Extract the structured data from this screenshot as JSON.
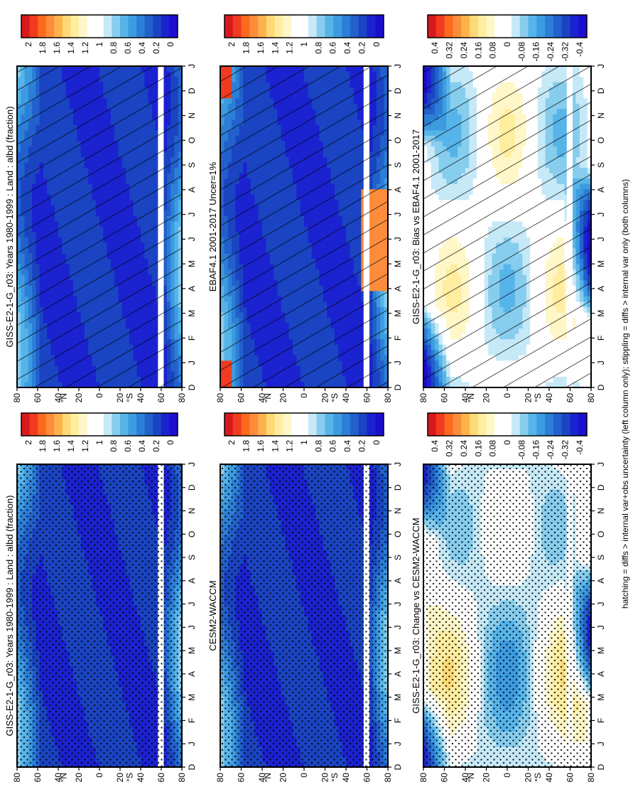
{
  "footnote": "hatching = diffs > internal var+obs uncertainty (left column only); stippling = diffs > internal var only (both columns)",
  "axes": {
    "months": [
      "D",
      "J",
      "F",
      "M",
      "A",
      "M",
      "J",
      "J",
      "A",
      "S",
      "O",
      "N",
      "D",
      "J"
    ],
    "lat_ticks": [
      "80",
      "60",
      "40",
      "20",
      "0",
      "20",
      "40",
      "60",
      "80"
    ],
    "lat_hemisphere_labels": [
      "°N",
      "°S"
    ]
  },
  "colorbars": {
    "absolute": {
      "tick_labels": [
        "2",
        "1.8",
        "1.6",
        "1.4",
        "1.2",
        "1",
        "0.8",
        "0.6",
        "0.4",
        "0.2",
        "0"
      ],
      "colors": [
        "#d7191c",
        "#f03b20",
        "#fd6a1e",
        "#fd8d3c",
        "#feb24c",
        "#fed976",
        "#ffeda0",
        "#fff7c8",
        "#ffffff",
        "#ffffff",
        "#c6e9f7",
        "#87cdee",
        "#56b4e9",
        "#3d9be0",
        "#2c7fd6",
        "#2261cc",
        "#1a44c2",
        "#1b22cf",
        "#1c0ecf"
      ]
    },
    "difference": {
      "tick_labels": [
        "0.4",
        "0.32",
        "0.24",
        "0.16",
        "0.08",
        "0",
        "-0.08",
        "-0.16",
        "-0.24",
        "-0.32",
        "-0.4"
      ],
      "colors": [
        "#d7191c",
        "#f03b20",
        "#fd6a1e",
        "#fd8d3c",
        "#feb24c",
        "#fed976",
        "#ffeda0",
        "#fff7c8",
        "#ffffff",
        "#ffffff",
        "#c6e9f7",
        "#87cdee",
        "#56b4e9",
        "#3d9be0",
        "#2c7fd6",
        "#2261cc",
        "#1a44c2",
        "#1b22cf",
        "#1c0ecf"
      ]
    }
  },
  "chart_data": [
    {
      "type": "heatmap",
      "title": "GISS-E2-1-G_r03: Years 1980-1999 : Land : albd (fraction)",
      "overlay": "hatching",
      "colorbar": "absolute",
      "x": [
        "D",
        "J",
        "F",
        "M",
        "A",
        "M",
        "J",
        "J",
        "A",
        "S",
        "O",
        "N",
        "D",
        "J"
      ],
      "y": [
        "80N",
        "60N",
        "40N",
        "20N",
        "0",
        "20S",
        "40S",
        "60S",
        "80S"
      ],
      "clim": [
        0,
        2
      ]
    },
    {
      "type": "heatmap",
      "title": "GISS-E2-1-G_r03: Years 1980-1999 : Land : albd (fraction)",
      "overlay": "stippling",
      "colorbar": "absolute",
      "x": [
        "D",
        "J",
        "F",
        "M",
        "A",
        "M",
        "J",
        "J",
        "A",
        "S",
        "O",
        "N",
        "D",
        "J"
      ],
      "y": [
        "80N",
        "60N",
        "40N",
        "20N",
        "0",
        "20S",
        "40S",
        "60S",
        "80S"
      ],
      "clim": [
        0,
        2
      ]
    },
    {
      "type": "heatmap",
      "title": "EBAF4.1 2001-2017 Uncer=1%",
      "overlay": "hatching",
      "colorbar": "absolute",
      "x": [
        "D",
        "J",
        "F",
        "M",
        "A",
        "M",
        "J",
        "J",
        "A",
        "S",
        "O",
        "N",
        "D",
        "J"
      ],
      "y": [
        "80N",
        "60N",
        "40N",
        "20N",
        "0",
        "20S",
        "40S",
        "60S",
        "80S"
      ],
      "clim": [
        0,
        2
      ]
    },
    {
      "type": "heatmap",
      "title": "CESM2-WACCM",
      "overlay": "stippling",
      "colorbar": "absolute",
      "x": [
        "D",
        "J",
        "F",
        "M",
        "A",
        "M",
        "J",
        "J",
        "A",
        "S",
        "O",
        "N",
        "D",
        "J"
      ],
      "y": [
        "80N",
        "60N",
        "40N",
        "20N",
        "0",
        "20S",
        "40S",
        "60S",
        "80S"
      ],
      "clim": [
        0,
        2
      ]
    },
    {
      "type": "heatmap",
      "title": "GISS-E2-1-G_r03: Bias vs EBAF4.1 2001-2017",
      "overlay": "hatching",
      "colorbar": "difference",
      "x": [
        "D",
        "J",
        "F",
        "M",
        "A",
        "M",
        "J",
        "J",
        "A",
        "S",
        "O",
        "N",
        "D",
        "J"
      ],
      "y": [
        "80N",
        "60N",
        "40N",
        "20N",
        "0",
        "20S",
        "40S",
        "60S",
        "80S"
      ],
      "clim": [
        -0.4,
        0.4
      ]
    },
    {
      "type": "heatmap",
      "title": "GISS-E2-1-G_r03: Change vs CESM2-WACCM",
      "overlay": "stippling",
      "colorbar": "difference",
      "x": [
        "D",
        "J",
        "F",
        "M",
        "A",
        "M",
        "J",
        "J",
        "A",
        "S",
        "O",
        "N",
        "D",
        "J"
      ],
      "y": [
        "80N",
        "60N",
        "40N",
        "20N",
        "0",
        "20S",
        "40S",
        "60S",
        "80S"
      ],
      "clim": [
        -0.4,
        0.4
      ]
    }
  ]
}
